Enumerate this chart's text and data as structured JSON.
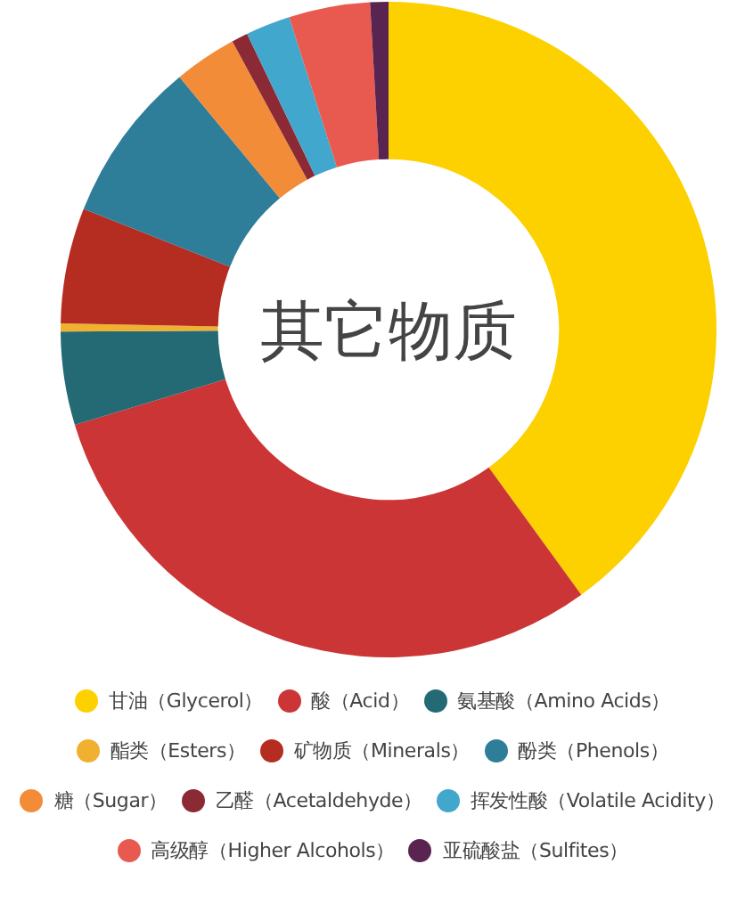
{
  "chart_data": {
    "type": "donut",
    "title": "其它物质",
    "categories": [
      "甘油（Glycerol）",
      "酸（Acid）",
      "氨基酸（Amino Acids）",
      "酯类（Esters）",
      "矿物质（Minerals）",
      "酚类（Phenols）",
      "糖（Sugar）",
      "乙醛（Acetaldehyde）",
      "挥发性酸（Volatile Acidity）",
      "高级醇（Higher Alcohols）",
      "亚硫酸盐（Sulfites）"
    ],
    "values": [
      40,
      30.3,
      4.6,
      0.4,
      5.7,
      8,
      3.1,
      0.8,
      2.2,
      4,
      0.9
    ],
    "colors": [
      "#fdd000",
      "#cb3535",
      "#236a75",
      "#f0b030",
      "#b52c20",
      "#2e7d99",
      "#f28c38",
      "#8b2a35",
      "#42a7cc",
      "#e85a50",
      "#5a2450"
    ],
    "legend": "bottom"
  }
}
